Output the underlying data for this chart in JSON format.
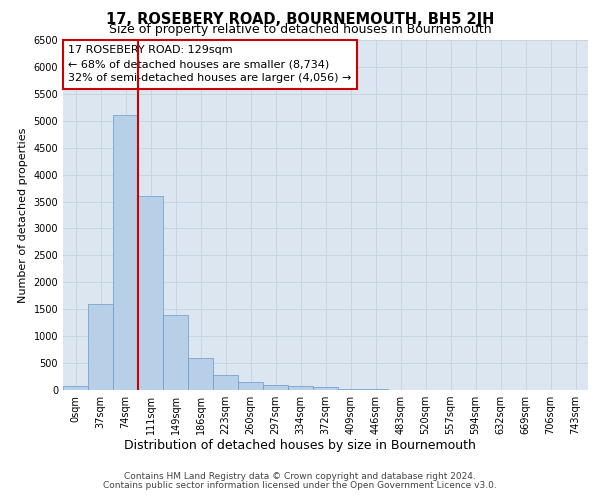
{
  "title": "17, ROSEBERY ROAD, BOURNEMOUTH, BH5 2JH",
  "subtitle": "Size of property relative to detached houses in Bournemouth",
  "xlabel": "Distribution of detached houses by size in Bournemouth",
  "ylabel": "Number of detached properties",
  "footer_line1": "Contains HM Land Registry data © Crown copyright and database right 2024.",
  "footer_line2": "Contains public sector information licensed under the Open Government Licence v3.0.",
  "property_label": "17 ROSEBERY ROAD: 129sqm",
  "annotation_line1": "← 68% of detached houses are smaller (8,734)",
  "annotation_line2": "32% of semi-detached houses are larger (4,056) →",
  "bin_labels": [
    "0sqm",
    "37sqm",
    "74sqm",
    "111sqm",
    "149sqm",
    "186sqm",
    "223sqm",
    "260sqm",
    "297sqm",
    "334sqm",
    "372sqm",
    "409sqm",
    "446sqm",
    "483sqm",
    "520sqm",
    "557sqm",
    "594sqm",
    "632sqm",
    "669sqm",
    "706sqm",
    "743sqm"
  ],
  "bar_heights": [
    75,
    1600,
    5100,
    3600,
    1400,
    600,
    280,
    150,
    100,
    75,
    50,
    25,
    10,
    5,
    3,
    2,
    1,
    1,
    0,
    0,
    0
  ],
  "bar_color": "#b8cfe8",
  "bar_edge_color": "#6699cc",
  "vline_color": "#cc0000",
  "vline_x_pos": 2.5,
  "ylim": [
    0,
    6500
  ],
  "yticks": [
    0,
    500,
    1000,
    1500,
    2000,
    2500,
    3000,
    3500,
    4000,
    4500,
    5000,
    5500,
    6000,
    6500
  ],
  "grid_color": "#c8d4e0",
  "background_color": "#dce6f0",
  "annotation_box_facecolor": "#ffffff",
  "annotation_box_edgecolor": "#cc0000",
  "title_fontsize": 10.5,
  "subtitle_fontsize": 9,
  "ylabel_fontsize": 8,
  "xlabel_fontsize": 9,
  "tick_fontsize": 7,
  "annotation_fontsize": 8,
  "footer_fontsize": 6.5
}
